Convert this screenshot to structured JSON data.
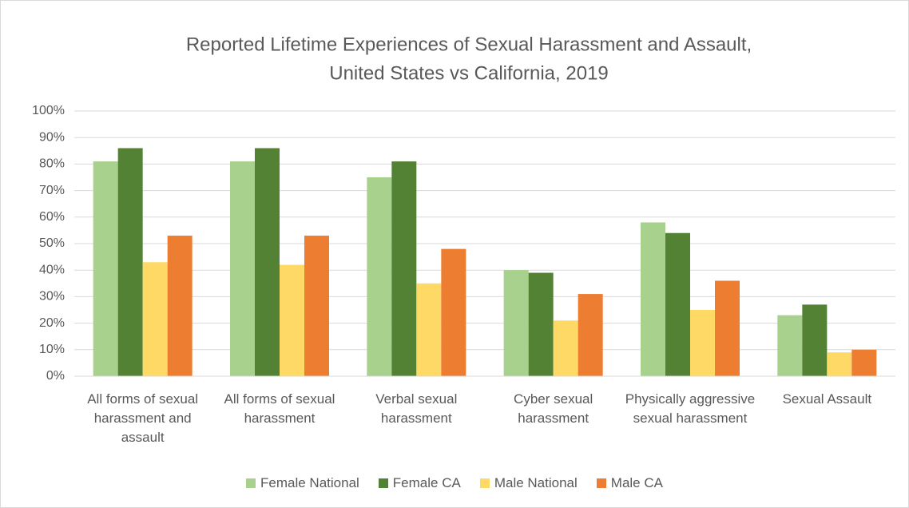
{
  "chart_data": {
    "type": "bar",
    "title": [
      "Reported Lifetime Experiences of  Sexual Harassment and Assault,",
      "United States vs California, 2019"
    ],
    "categories": [
      "All forms of sexual harassment and assault",
      "All forms of sexual harassment",
      "Verbal sexual harassment",
      "Cyber sexual harassment",
      "Physically aggressive sexual harassment",
      "Sexual Assault"
    ],
    "series": [
      {
        "name": "Female National",
        "color": "#a9d18e",
        "values": [
          81,
          81,
          75,
          40,
          58,
          23
        ]
      },
      {
        "name": "Female CA",
        "color": "#548235",
        "values": [
          86,
          86,
          81,
          39,
          54,
          27
        ]
      },
      {
        "name": "Male National",
        "color": "#ffd966",
        "values": [
          43,
          42,
          35,
          21,
          25,
          9
        ]
      },
      {
        "name": "Male CA",
        "color": "#ed7d31",
        "values": [
          53,
          53,
          48,
          31,
          36,
          10
        ]
      }
    ],
    "ylim": [
      0,
      100
    ],
    "yticks": [
      {
        "value": 0,
        "label": "0%"
      },
      {
        "value": 10,
        "label": "10%"
      },
      {
        "value": 20,
        "label": "20%"
      },
      {
        "value": 30,
        "label": "30%"
      },
      {
        "value": 40,
        "label": "40%"
      },
      {
        "value": 50,
        "label": "50%"
      },
      {
        "value": 60,
        "label": "60%"
      },
      {
        "value": 70,
        "label": "70%"
      },
      {
        "value": 80,
        "label": "80%"
      },
      {
        "value": 90,
        "label": "90%"
      },
      {
        "value": 100,
        "label": "100%"
      }
    ],
    "grid": true,
    "legend": "bottom"
  }
}
